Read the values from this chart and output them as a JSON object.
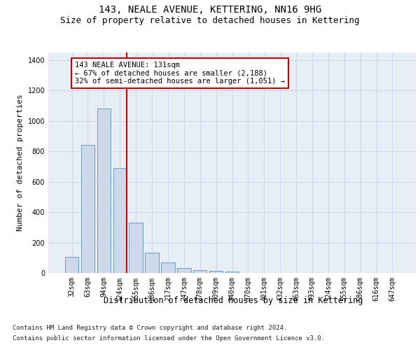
{
  "title": "143, NEALE AVENUE, KETTERING, NN16 9HG",
  "subtitle": "Size of property relative to detached houses in Kettering",
  "xlabel": "Distribution of detached houses by size in Kettering",
  "ylabel": "Number of detached properties",
  "categories": [
    "32sqm",
    "63sqm",
    "94sqm",
    "124sqm",
    "155sqm",
    "186sqm",
    "217sqm",
    "247sqm",
    "278sqm",
    "309sqm",
    "340sqm",
    "370sqm",
    "401sqm",
    "432sqm",
    "463sqm",
    "493sqm",
    "524sqm",
    "555sqm",
    "586sqm",
    "616sqm",
    "647sqm"
  ],
  "values": [
    105,
    843,
    1080,
    690,
    330,
    135,
    68,
    32,
    20,
    12,
    10,
    0,
    0,
    0,
    0,
    0,
    0,
    0,
    0,
    0,
    0
  ],
  "bar_color": "#cdd9ea",
  "bar_edge_color": "#6b9bbf",
  "red_line_x": 3.42,
  "red_line_color": "#cc0000",
  "annotation_line1": "143 NEALE AVENUE: 131sqm",
  "annotation_line2": "← 67% of detached houses are smaller (2,188)",
  "annotation_line3": "32% of semi-detached houses are larger (1,051) →",
  "grid_color": "#cdd9ea",
  "bg_color": "#e8eef5",
  "footer_line1": "Contains HM Land Registry data © Crown copyright and database right 2024.",
  "footer_line2": "Contains public sector information licensed under the Open Government Licence v3.0.",
  "ylim": [
    0,
    1450
  ],
  "yticks": [
    0,
    200,
    400,
    600,
    800,
    1000,
    1200,
    1400
  ],
  "title_fontsize": 10,
  "subtitle_fontsize": 9,
  "axis_label_fontsize": 8,
  "tick_fontsize": 7,
  "annotation_fontsize": 7.5,
  "footer_fontsize": 6.5
}
